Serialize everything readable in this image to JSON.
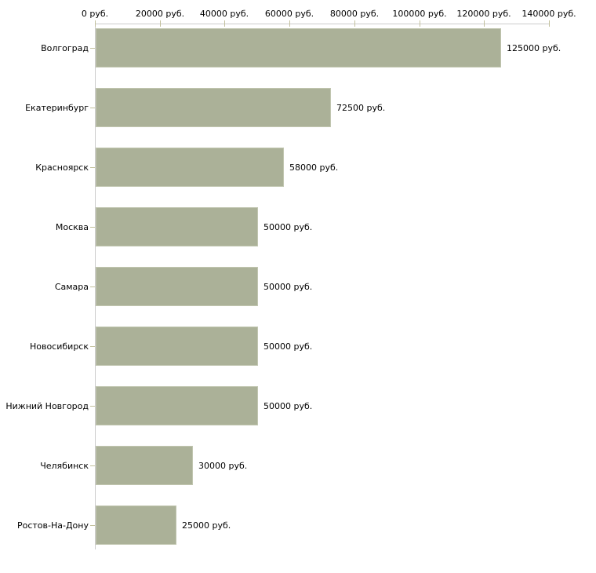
{
  "chart_data": {
    "type": "bar",
    "orientation": "horizontal",
    "unit": "руб.",
    "categories": [
      "Волгоград",
      "Екатеринбург",
      "Красноярск",
      "Москва",
      "Самара",
      "Новосибирск",
      "Нижний Новгород",
      "Челябинск",
      "Ростов-На-Дону"
    ],
    "values": [
      125000,
      72500,
      58000,
      50000,
      50000,
      50000,
      50000,
      30000,
      25000
    ],
    "value_labels": [
      "125000 руб.",
      "72500 руб.",
      "58000 руб.",
      "50000 руб.",
      "50000 руб.",
      "50000 руб.",
      "50000 руб.",
      "30000 руб.",
      "25000 руб."
    ],
    "x_ticks": [
      {
        "value": 0,
        "label": "0 руб."
      },
      {
        "value": 20000,
        "label": "20000 руб."
      },
      {
        "value": 40000,
        "label": "40000 руб."
      },
      {
        "value": 60000,
        "label": "60000 руб."
      },
      {
        "value": 80000,
        "label": "80000 руб."
      },
      {
        "value": 100000,
        "label": "100000 руб."
      },
      {
        "value": 120000,
        "label": "120000 руб."
      },
      {
        "value": 140000,
        "label": "140000 руб."
      }
    ],
    "xlim": [
      0,
      140000
    ],
    "grid": false,
    "legend": false,
    "colors": {
      "bar_fill": "#abb198",
      "bar_border": "#c1c6b0",
      "axis_line": "#cccccc",
      "tick_mark": "#c2c09c",
      "text": "#000000",
      "background": "#ffffff"
    }
  }
}
